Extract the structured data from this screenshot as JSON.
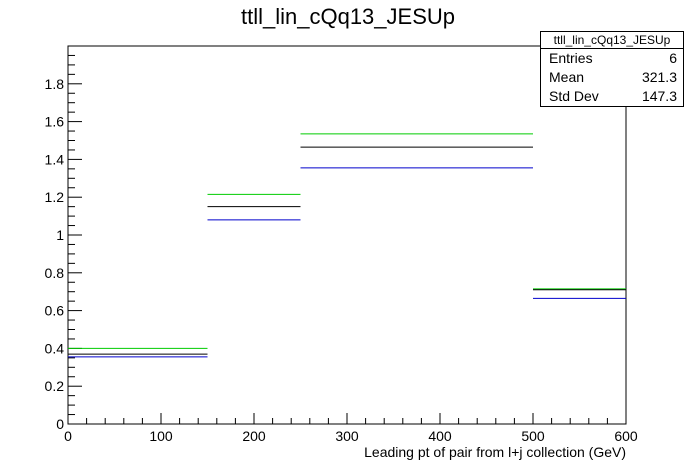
{
  "chart_data": {
    "type": "step",
    "title": "ttll_lin_cQq13_JESUp",
    "xlabel": "Leading pt of pair from l+j collection (GeV)",
    "ylabel": "",
    "xlim": [
      0,
      600
    ],
    "ylim": [
      0,
      2
    ],
    "x_ticks": [
      "0",
      "100",
      "200",
      "300",
      "400",
      "500",
      "600"
    ],
    "y_ticks": [
      "0",
      "0.2",
      "0.4",
      "0.6",
      "0.8",
      "1",
      "1.2",
      "1.4",
      "1.6",
      "1.8"
    ],
    "bin_edges": [
      0,
      150,
      250,
      500,
      600
    ],
    "series": [
      {
        "color": "#00cc00",
        "values": [
          0.4,
          1.215,
          1.535,
          0.715
        ]
      },
      {
        "color": "#000000",
        "values": [
          0.37,
          1.15,
          1.465,
          0.71
        ]
      },
      {
        "color": "#0000cc",
        "values": [
          0.355,
          1.08,
          1.355,
          0.665
        ]
      }
    ],
    "stats": {
      "title": "ttll_lin_cQq13_JESUp",
      "rows": [
        {
          "label": "Entries",
          "value": "6"
        },
        {
          "label": "Mean",
          "value": "321.3"
        },
        {
          "label": "Std Dev",
          "value": "147.3"
        }
      ]
    }
  }
}
